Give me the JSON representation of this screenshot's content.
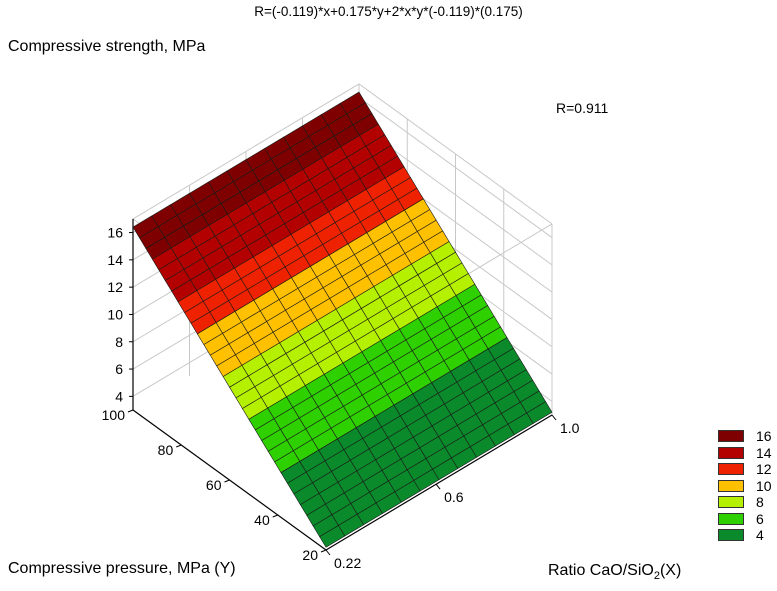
{
  "chart_data": {
    "type": "surface",
    "title": "R=(-0.119)*x+0.175*y+2*x*y*(-0.119)*(0.175)",
    "annotation": "R=0.911",
    "zlabel": "Compressive strength, MPa",
    "ylabel": "Compressive pressure, MPa  (Y)",
    "xlabel_main": "Ratio CaO/SiO",
    "xlabel_sub": "2",
    "xlabel_tail": "(X)",
    "x_ticks": [
      "0.22",
      "0.6",
      "1.0"
    ],
    "y_ticks": [
      "20",
      "40",
      "60",
      "80",
      "100"
    ],
    "z_ticks": [
      "4",
      "6",
      "8",
      "10",
      "12",
      "14",
      "16"
    ],
    "xlim": [
      0.22,
      1.0
    ],
    "ylim": [
      20,
      100
    ],
    "zlim": [
      3,
      17
    ],
    "corners": {
      "x022_y20": 3.2,
      "x1_y20": 3.2,
      "x022_y100": 16.4,
      "x1_y100": 16.4
    },
    "legend": [
      {
        "label": "16",
        "color": "#7f0000"
      },
      {
        "label": "14",
        "color": "#b30000"
      },
      {
        "label": "12",
        "color": "#ee2200"
      },
      {
        "label": "10",
        "color": "#ffc000"
      },
      {
        "label": "8",
        "color": "#b5f000"
      },
      {
        "label": "6",
        "color": "#2ed000"
      },
      {
        "label": "4",
        "color": "#0a8a2a"
      }
    ],
    "grid": true,
    "legend_position": "bottom-right"
  }
}
